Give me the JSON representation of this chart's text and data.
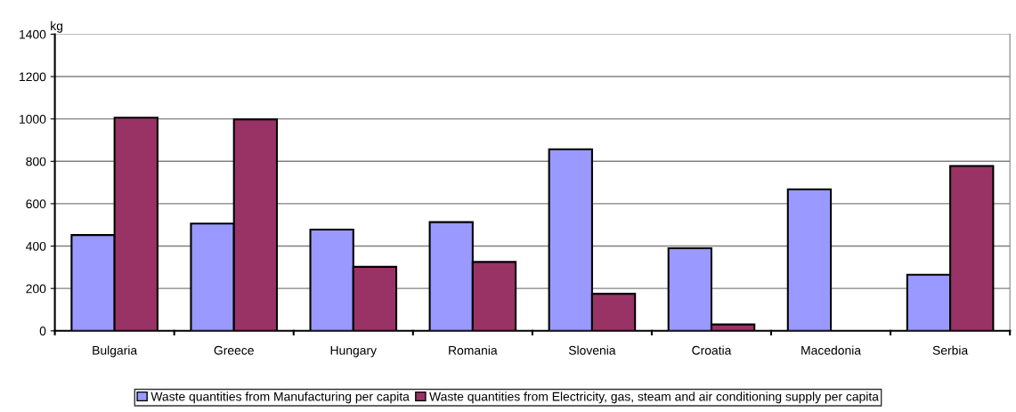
{
  "chart_data": {
    "type": "bar",
    "ylabel": "kg",
    "categories": [
      "Bulgaria",
      "Greece",
      "Hungary",
      "Romania",
      "Slovenia",
      "Croatia",
      "Macedonia",
      "Serbia"
    ],
    "series": [
      {
        "name": "Waste quantities from Manufacturing per capita",
        "color": "#9999ff",
        "values": [
          452,
          506,
          478,
          513,
          857,
          390,
          668,
          265
        ]
      },
      {
        "name": "Waste quantities from Electricity, gas, steam and air conditioning supply per capita",
        "color": "#993366",
        "values": [
          1006,
          998,
          302,
          325,
          175,
          30,
          null,
          778
        ]
      }
    ],
    "ylim": [
      0,
      1400
    ],
    "yticks": [
      0,
      200,
      400,
      600,
      800,
      1000,
      1200,
      1400
    ],
    "grid": "y",
    "legend": "bottom"
  }
}
